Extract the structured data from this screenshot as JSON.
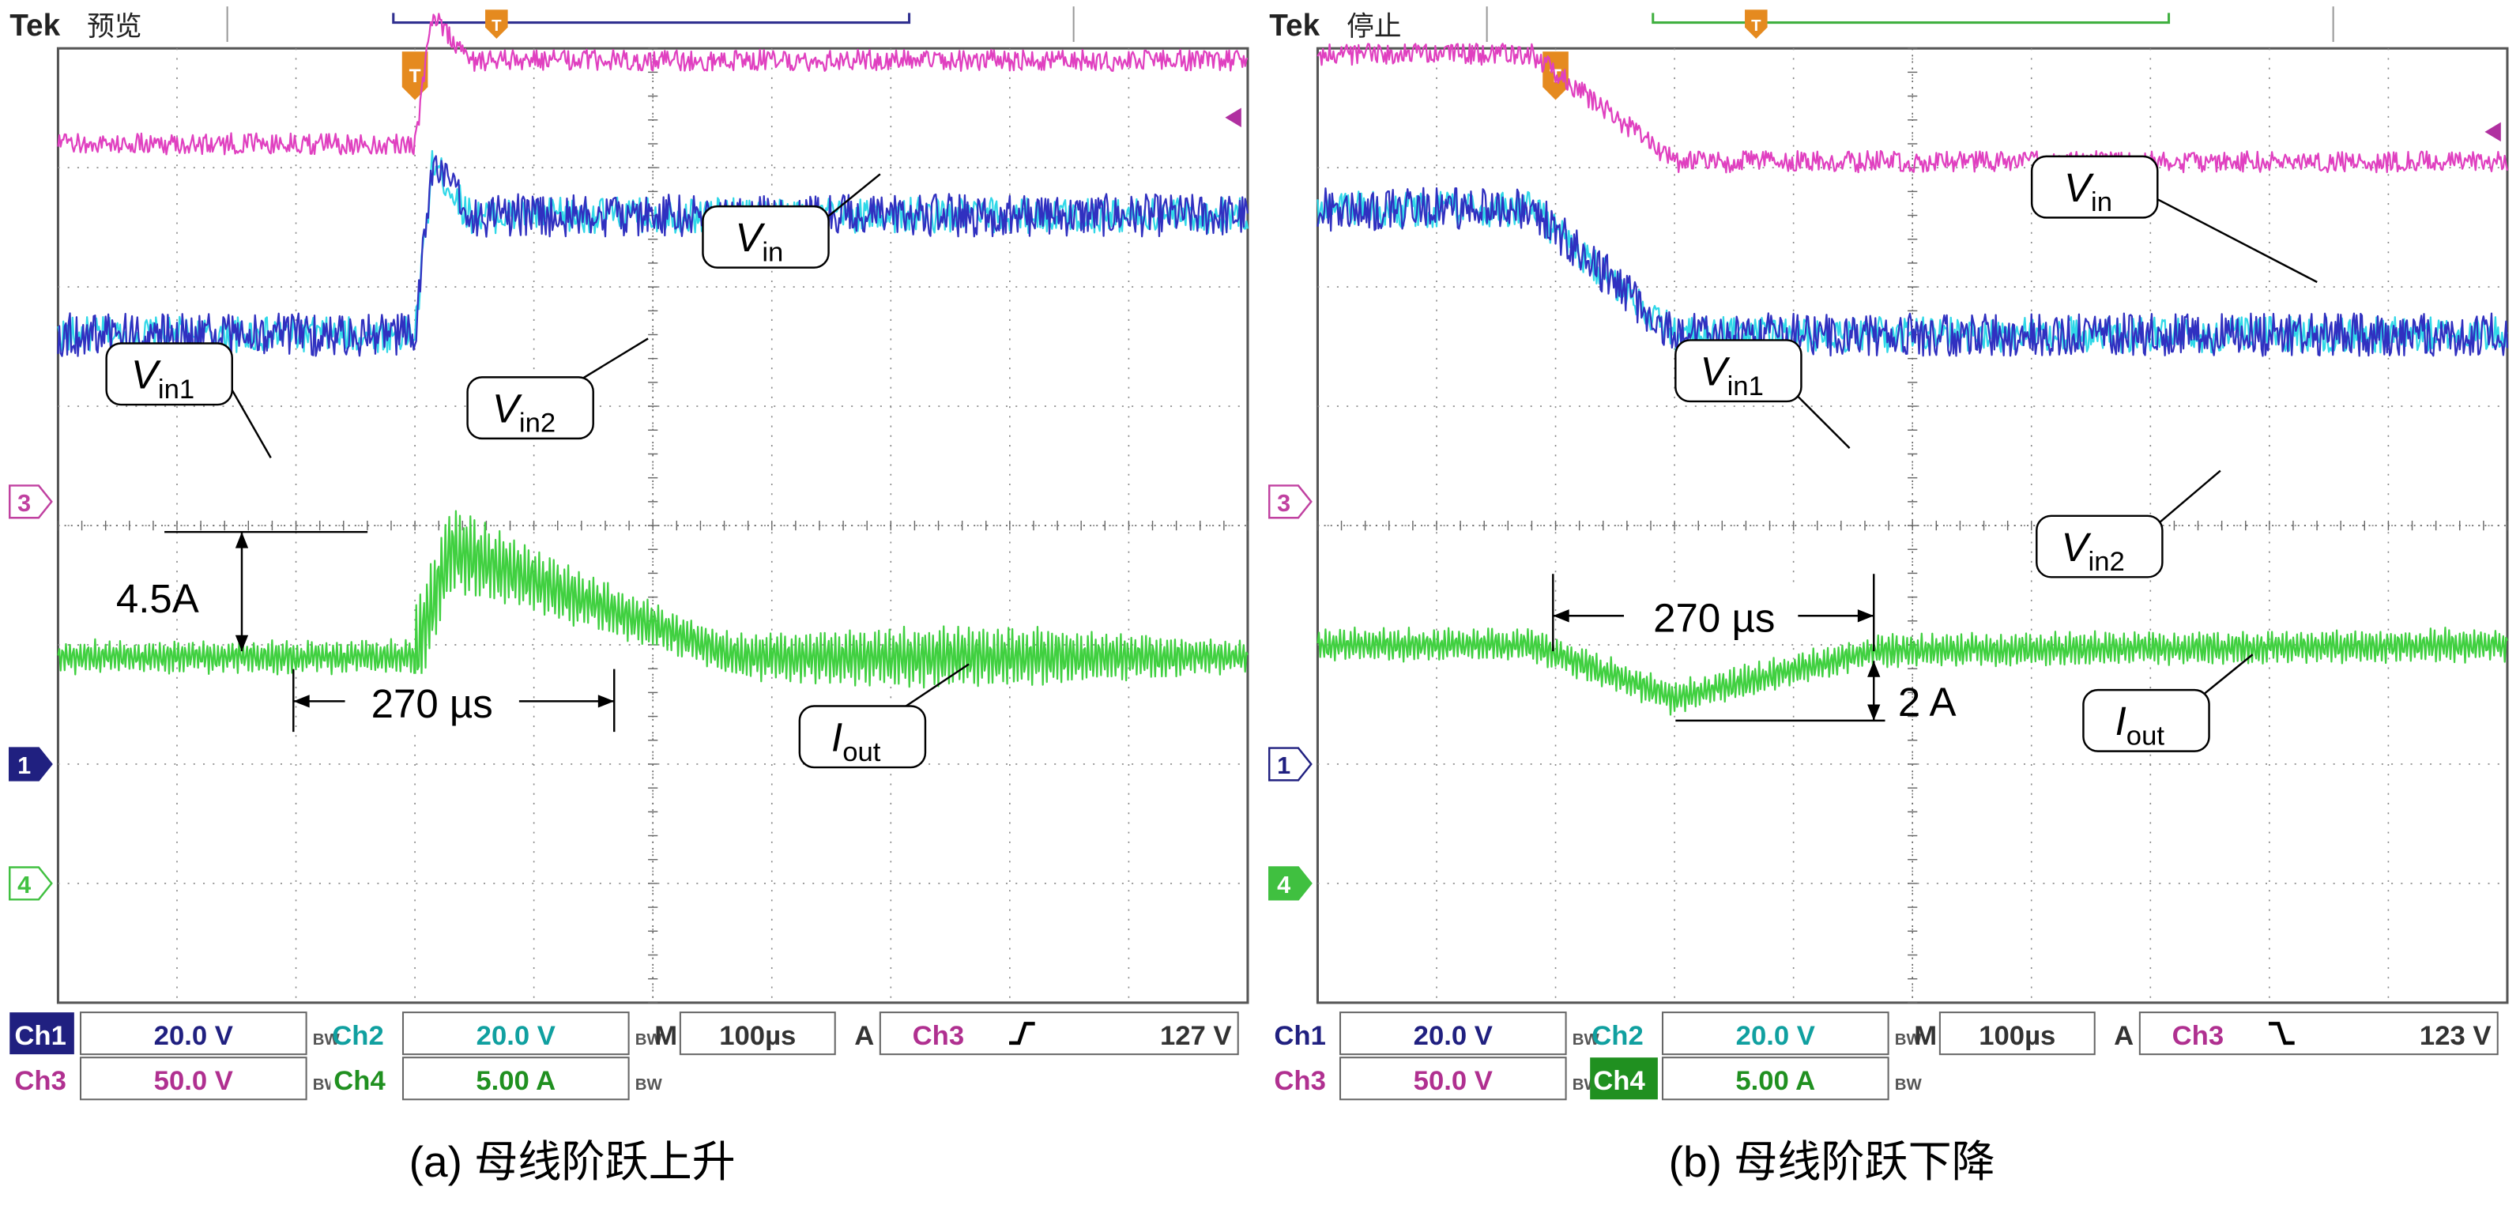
{
  "panels": [
    {
      "id": "a",
      "brand": "Tek",
      "status": "预览",
      "caption": "(a) 母线阶跃上升",
      "trigger_marker": "T",
      "ref_markers": [
        "3",
        "1",
        "4"
      ],
      "readout": {
        "ch1_label": "Ch1",
        "ch1_value": "20.0 V",
        "ch2_label": "Ch2",
        "ch2_value": "20.0 V",
        "ch3_label": "Ch3",
        "ch3_value": "50.0 V",
        "ch4_label": "Ch4",
        "ch4_value": "5.00 A",
        "bw": "BW",
        "timebase_label": "M",
        "timebase_value": "100µs",
        "acq_label": "A",
        "trig_source": "Ch3",
        "trig_slope": "rising",
        "trig_level": "127 V"
      },
      "labels": {
        "vin": "V",
        "vin_sub": "in",
        "vin1": "V",
        "vin1_sub": "in1",
        "vin2": "V",
        "vin2_sub": "in2",
        "iout": "I",
        "iout_sub": "out"
      },
      "annotations": {
        "delta_i": "4.5A",
        "delta_t": "270 µs"
      }
    },
    {
      "id": "b",
      "brand": "Tek",
      "status": "停止",
      "caption": "(b) 母线阶跃下降",
      "trigger_marker": "T",
      "ref_markers": [
        "3",
        "1",
        "4"
      ],
      "readout": {
        "ch1_label": "Ch1",
        "ch1_value": "20.0 V",
        "ch2_label": "Ch2",
        "ch2_value": "20.0 V",
        "ch3_label": "Ch3",
        "ch3_value": "50.0 V",
        "ch4_label": "Ch4",
        "ch4_value": "5.00 A",
        "bw": "BW",
        "timebase_label": "M",
        "timebase_value": "100µs",
        "acq_label": "A",
        "trig_source": "Ch3",
        "trig_slope": "falling",
        "trig_level": "123 V"
      },
      "labels": {
        "vin": "V",
        "vin_sub": "in",
        "vin1": "V",
        "vin1_sub": "in1",
        "vin2": "V",
        "vin2_sub": "in2",
        "iout": "I",
        "iout_sub": "out"
      },
      "annotations": {
        "delta_i": "2 A",
        "delta_t": "270 µs"
      }
    }
  ],
  "chart_data": [
    {
      "type": "line",
      "title": "(a) 母线阶跃上升",
      "xlabel": "",
      "ylabel": "",
      "x_unit": "µs",
      "x_range": [
        -300,
        700
      ],
      "y_unit": "div",
      "y_range": [
        -4,
        4
      ],
      "grid": true,
      "colors": {
        "Vin": "#e040c0",
        "Vin1": "#3030c0",
        "Vin2": "#30d8e8",
        "Iout": "#40d040"
      },
      "series": [
        {
          "name": "Vin",
          "x": [
            -300,
            0,
            15,
            45,
            100,
            700
          ],
          "y": [
            3.2,
            3.2,
            4.3,
            3.9,
            3.9,
            3.9
          ]
        },
        {
          "name": "Vin1",
          "x": [
            -300,
            0,
            15,
            45,
            100,
            700
          ],
          "y": [
            1.6,
            1.6,
            3.05,
            2.6,
            2.6,
            2.6
          ]
        },
        {
          "name": "Vin2",
          "x": [
            -300,
            0,
            15,
            45,
            100,
            700
          ],
          "y": [
            1.6,
            1.6,
            3.05,
            2.6,
            2.6,
            2.6
          ]
        },
        {
          "name": "Iout",
          "x": [
            -300,
            0,
            30,
            270,
            700
          ],
          "y": [
            -1.1,
            -1.1,
            -0.2,
            -1.1,
            -1.1
          ]
        }
      ],
      "annotations": [
        {
          "text": "4.5A",
          "kind": "step"
        },
        {
          "text": "270 µs",
          "kind": "duration"
        }
      ]
    },
    {
      "type": "line",
      "title": "(b) 母线阶跃下降",
      "xlabel": "",
      "ylabel": "",
      "x_unit": "µs",
      "x_range": [
        -200,
        800
      ],
      "y_unit": "div",
      "y_range": [
        -4,
        4
      ],
      "grid": true,
      "colors": {
        "Vin": "#e040c0",
        "Vin1": "#3030c0",
        "Vin2": "#30d8e8",
        "Iout": "#40d040"
      },
      "series": [
        {
          "name": "Vin",
          "x": [
            -200,
            -20,
            100,
            800
          ],
          "y": [
            3.95,
            3.95,
            3.05,
            3.05
          ]
        },
        {
          "name": "Vin1",
          "x": [
            -200,
            -20,
            100,
            800
          ],
          "y": [
            2.65,
            2.65,
            1.6,
            1.6
          ]
        },
        {
          "name": "Vin2",
          "x": [
            -200,
            -20,
            100,
            800
          ],
          "y": [
            2.65,
            2.65,
            1.6,
            1.6
          ]
        },
        {
          "name": "Iout",
          "x": [
            -200,
            -20,
            100,
            270,
            800
          ],
          "y": [
            -1.0,
            -1.0,
            -1.45,
            -1.05,
            -1.0
          ]
        }
      ],
      "annotations": [
        {
          "text": "270 µs",
          "kind": "duration"
        },
        {
          "text": "2 A",
          "kind": "step"
        }
      ]
    }
  ]
}
